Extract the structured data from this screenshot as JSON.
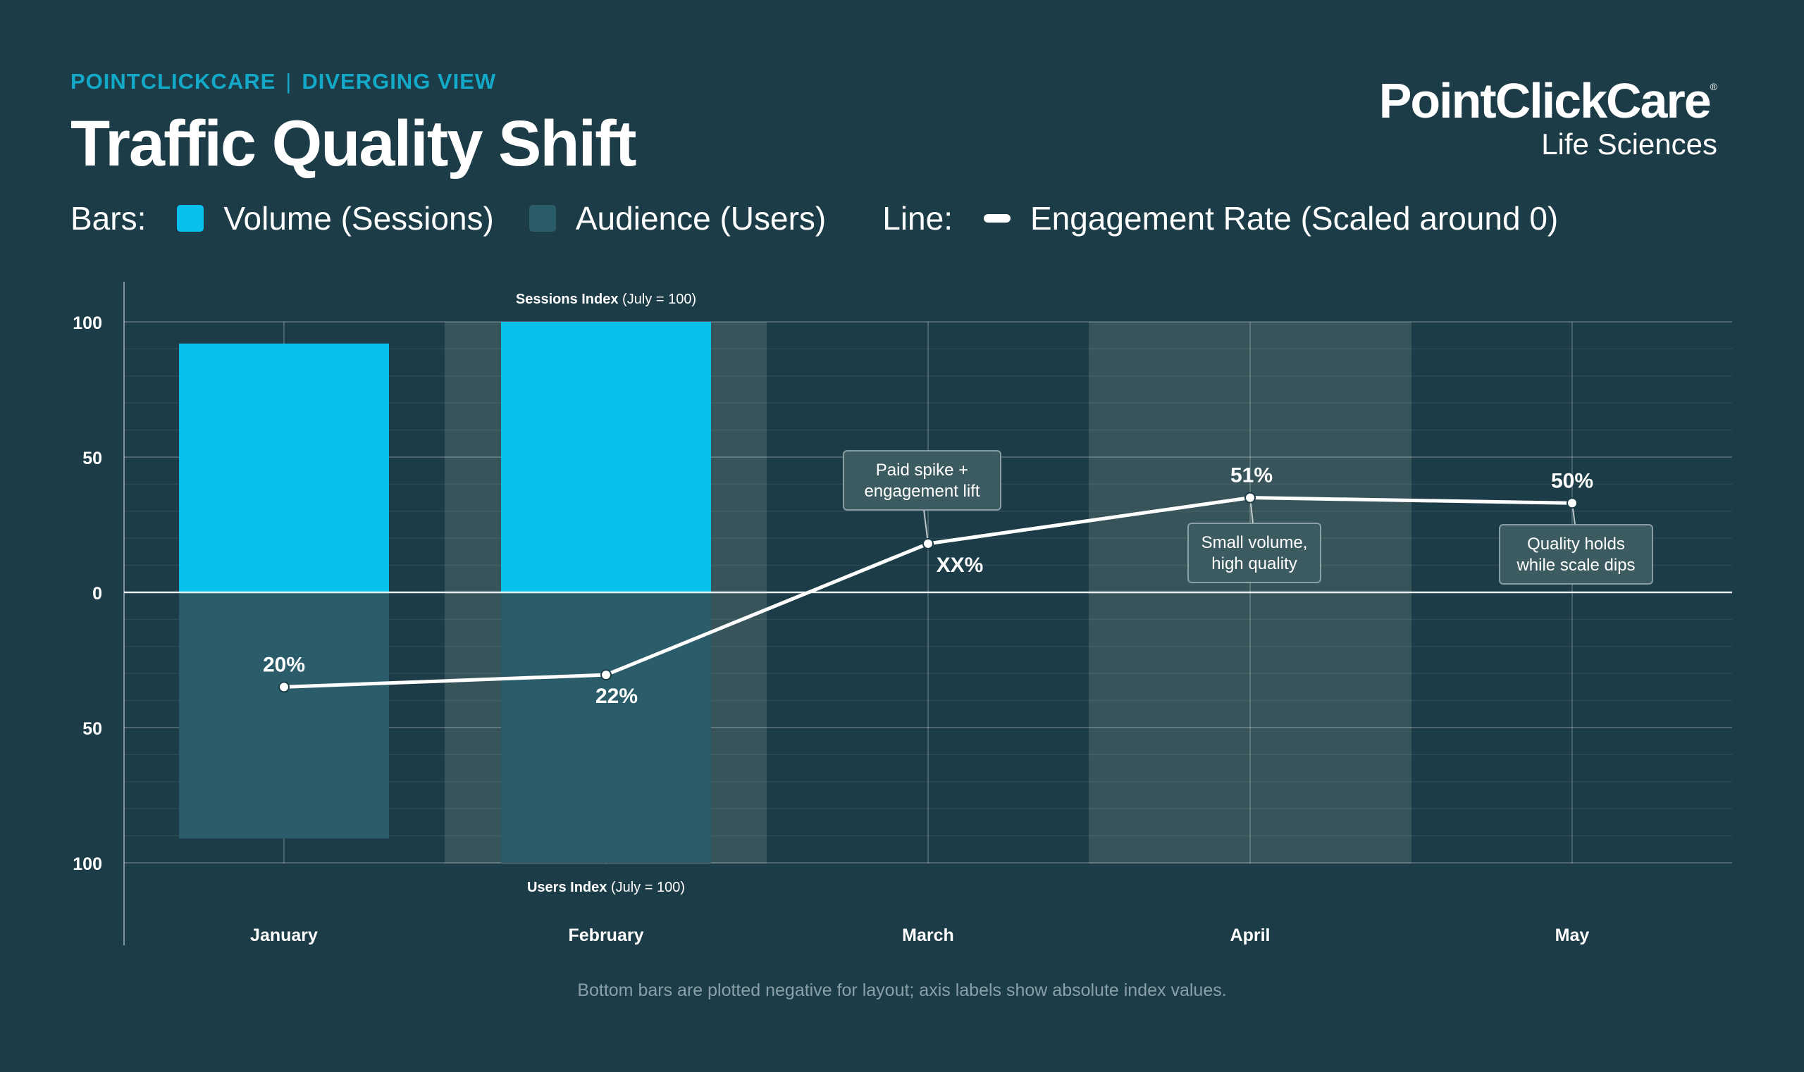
{
  "header": {
    "eyebrow_left": "POINTCLICKCARE",
    "eyebrow_sep": "|",
    "eyebrow_right": "DIVERGING VIEW",
    "title": "Traffic Quality Shift"
  },
  "logo": {
    "name": "PointClickCare",
    "mark": "®",
    "subtitle": "Life Sciences"
  },
  "legend": {
    "bars_label": "Bars:",
    "line_label": "Line:",
    "volume": "Volume (Sessions)",
    "audience": "Audience (Users)",
    "engagement": "Engagement Rate (Scaled around 0)"
  },
  "colors": {
    "background": "#1c3c47",
    "volume": "#07c1ec",
    "audience": "#2b5c69",
    "line": "#ffffff",
    "band": "#365459",
    "accent": "#13a9c8"
  },
  "chart_data": {
    "type": "bar",
    "categories": [
      "January",
      "February",
      "March",
      "April",
      "May"
    ],
    "y_ticks": [
      100,
      50,
      0,
      50,
      100
    ],
    "ylim": [
      -100,
      100
    ],
    "grid": true,
    "series": [
      {
        "name": "Volume (Sessions)",
        "values": [
          92,
          100,
          null,
          null,
          null
        ]
      },
      {
        "name": "Audience (Users)",
        "values": [
          -91,
          -100,
          null,
          null,
          null
        ]
      },
      {
        "name": "Engagement Rate (Scaled around 0)",
        "values": [
          -35,
          -30.5,
          18,
          35,
          33
        ],
        "labels": [
          "20%",
          "22%",
          "XX%",
          "51%",
          "50%"
        ]
      }
    ],
    "axis_notes": {
      "top": {
        "bold": "Sessions Index",
        "rest": "(July = 100)"
      },
      "bottom": {
        "bold": "Users Index",
        "rest": "(July = 100)"
      }
    },
    "annotations": [
      {
        "category": "March",
        "lines": [
          "Paid spike +",
          "engagement lift"
        ]
      },
      {
        "category": "April",
        "lines": [
          "Small volume,",
          "high quality"
        ]
      },
      {
        "category": "May",
        "lines": [
          "Quality holds",
          "while scale dips"
        ]
      }
    ]
  },
  "footnote": "Bottom bars are plotted negative for layout; axis labels show absolute index values."
}
